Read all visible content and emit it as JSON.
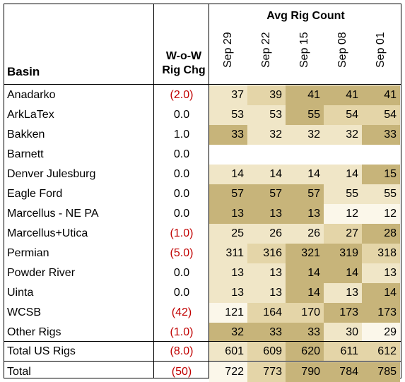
{
  "headers": {
    "basin": "Basin",
    "wow_line1": "W-o-W",
    "wow_line2": "Rig Chg",
    "avg": "Avg Rig Count",
    "dates": [
      "Sep 29",
      "Sep 22",
      "Sep 15",
      "Sep 08",
      "Sep 01"
    ]
  },
  "colors": {
    "level_1": "#fbf7ea",
    "level_2": "#f0e6c7",
    "level_3": "#e4d5a8",
    "level_4": "#c7b47a",
    "negative": "#c00000"
  },
  "rows": [
    {
      "basin": "Anadarko",
      "chg": "(2.0)",
      "neg": true,
      "values": [
        "37",
        "39",
        "41",
        "41",
        "41"
      ],
      "shade": [
        2,
        3,
        4,
        4,
        4
      ]
    },
    {
      "basin": "ArkLaTex",
      "chg": "0.0",
      "neg": false,
      "values": [
        "53",
        "53",
        "55",
        "54",
        "54"
      ],
      "shade": [
        2,
        2,
        4,
        3,
        3
      ]
    },
    {
      "basin": "Bakken",
      "chg": "1.0",
      "neg": false,
      "values": [
        "33",
        "32",
        "32",
        "32",
        "33"
      ],
      "shade": [
        4,
        2,
        2,
        2,
        4
      ]
    },
    {
      "basin": "Barnett",
      "chg": "0.0",
      "neg": false,
      "values": [
        "",
        "",
        "",
        "",
        ""
      ],
      "shade": [
        0,
        0,
        0,
        0,
        0
      ]
    },
    {
      "basin": "Denver Julesburg",
      "chg": "0.0",
      "neg": false,
      "values": [
        "14",
        "14",
        "14",
        "14",
        "15"
      ],
      "shade": [
        2,
        2,
        2,
        2,
        4
      ]
    },
    {
      "basin": "Eagle Ford",
      "chg": "0.0",
      "neg": false,
      "values": [
        "57",
        "57",
        "57",
        "55",
        "55"
      ],
      "shade": [
        4,
        4,
        4,
        2,
        2
      ]
    },
    {
      "basin": "Marcellus - NE PA",
      "chg": "0.0",
      "neg": false,
      "values": [
        "13",
        "13",
        "13",
        "12",
        "12"
      ],
      "shade": [
        4,
        4,
        4,
        1,
        1
      ]
    },
    {
      "basin": "Marcellus+Utica",
      "chg": "(1.0)",
      "neg": true,
      "values": [
        "25",
        "26",
        "26",
        "27",
        "28"
      ],
      "shade": [
        2,
        2,
        2,
        3,
        4
      ]
    },
    {
      "basin": "Permian",
      "chg": "(5.0)",
      "neg": true,
      "values": [
        "311",
        "316",
        "321",
        "319",
        "318"
      ],
      "shade": [
        2,
        3,
        4,
        4,
        3
      ]
    },
    {
      "basin": "Powder River",
      "chg": "0.0",
      "neg": false,
      "values": [
        "13",
        "13",
        "14",
        "14",
        "13"
      ],
      "shade": [
        2,
        2,
        4,
        4,
        2
      ]
    },
    {
      "basin": "Uinta",
      "chg": "0.0",
      "neg": false,
      "values": [
        "13",
        "13",
        "14",
        "13",
        "14"
      ],
      "shade": [
        2,
        2,
        4,
        2,
        4
      ]
    },
    {
      "basin": "WCSB",
      "chg": "(42)",
      "neg": true,
      "values": [
        "121",
        "164",
        "170",
        "173",
        "173"
      ],
      "shade": [
        1,
        3,
        3,
        4,
        4
      ]
    },
    {
      "basin": "Other Rigs",
      "chg": "(1.0)",
      "neg": true,
      "values": [
        "32",
        "33",
        "33",
        "30",
        "29"
      ],
      "shade": [
        4,
        4,
        4,
        2,
        1
      ]
    },
    {
      "basin": "Total US Rigs",
      "chg": "(8.0)",
      "neg": true,
      "values": [
        "601",
        "609",
        "620",
        "611",
        "612"
      ],
      "shade": [
        2,
        3,
        4,
        3,
        3
      ]
    },
    {
      "basin": "Total",
      "chg": "(50)",
      "neg": true,
      "values": [
        "722",
        "773",
        "790",
        "784",
        "785"
      ],
      "shade": [
        1,
        3,
        4,
        4,
        4
      ]
    }
  ]
}
